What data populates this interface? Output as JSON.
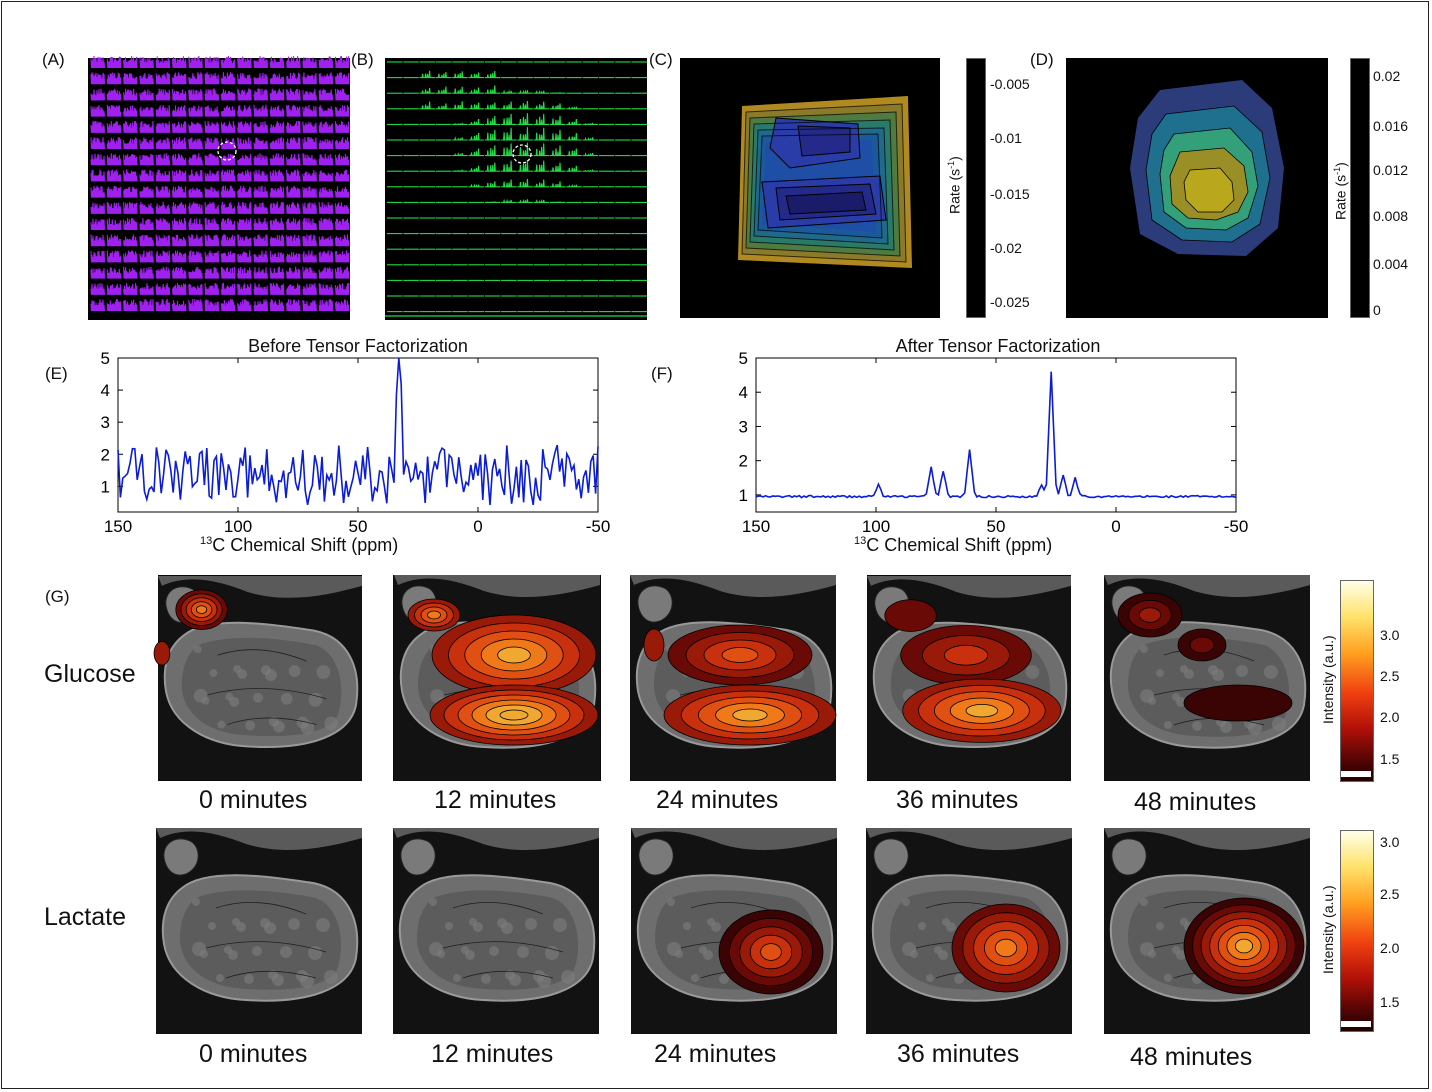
{
  "panel_labels": [
    "(A)",
    "(B)",
    "(C)",
    "(D)",
    "(E)",
    "(F)",
    "(G)"
  ],
  "colorbar_c": {
    "label": "Rate (s",
    "label_sup": "-1",
    "label_end": ")",
    "ticks": [
      "-0.005",
      "-0.01",
      "-0.015",
      "-0.02",
      "-0.025"
    ]
  },
  "colorbar_d": {
    "label": "Rate (s",
    "label_sup": "-1",
    "label_end": ")",
    "ticks": [
      "0.02",
      "0.016",
      "0.012",
      "0.008",
      "0.004",
      "0"
    ]
  },
  "chart_data": [
    {
      "type": "line",
      "title": "Before Tensor Factorization",
      "xlabel_sup": "13",
      "xlabel": "C Chemical Shift (ppm)",
      "x_ticks": [
        "150",
        "100",
        "50",
        "0",
        "-50"
      ],
      "y_ticks": [
        "5",
        "4",
        "3",
        "2",
        "1"
      ],
      "xlim": [
        150,
        -50
      ],
      "ylim": [
        0.2,
        5
      ],
      "peak": {
        "x": 33,
        "y": 4.9
      },
      "noise_seed": 7
    },
    {
      "type": "line",
      "title": "After Tensor Factorization",
      "xlabel_sup": "13",
      "xlabel": "C Chemical Shift (ppm)",
      "x_ticks": [
        "150",
        "100",
        "50",
        "0",
        "-50"
      ],
      "y_ticks": [
        "5",
        "4",
        "3",
        "2",
        "1"
      ],
      "xlim": [
        150,
        -50
      ],
      "ylim": [
        0.5,
        5
      ],
      "peaks": [
        {
          "x": 27,
          "y": 4.6
        },
        {
          "x": 61,
          "y": 2.3
        },
        {
          "x": 77,
          "y": 1.8
        },
        {
          "x": 72,
          "y": 1.7
        },
        {
          "x": 99,
          "y": 1.3
        },
        {
          "x": 22,
          "y": 1.6
        },
        {
          "x": 17,
          "y": 1.5
        },
        {
          "x": 31,
          "y": 1.3
        }
      ],
      "baseline": 0.95
    }
  ],
  "row_glucose": {
    "label": "Glucose",
    "times": [
      "0 minutes",
      "12 minutes",
      "24 minutes",
      "36 minutes",
      "48 minutes"
    ],
    "colorbar_label": "Intensity (a.u.)",
    "colorbar_ticks": [
      "3.0",
      "2.5",
      "2.0",
      "1.5"
    ]
  },
  "row_lactate": {
    "label": "Lactate",
    "times": [
      "0 minutes",
      "12 minutes",
      "24 minutes",
      "36 minutes",
      "48 minutes"
    ],
    "colorbar_label": "Intensity (a.u.)",
    "colorbar_ticks": [
      "3.0",
      "2.5",
      "2.0",
      "1.5"
    ]
  },
  "colors": {
    "purple": "#a020f0",
    "green": "#22dd44",
    "line_blue": "#0a1cd8"
  }
}
